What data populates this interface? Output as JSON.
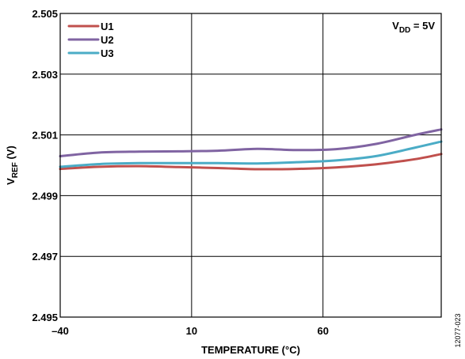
{
  "chart_data": {
    "type": "line",
    "xlabel": "TEMPERATURE (°C)",
    "ylabel": {
      "main": "V",
      "sub": "REF",
      "unit": " (V)"
    },
    "annotation": {
      "main": "V",
      "sub": "DD",
      "rest": " = 5V"
    },
    "figure_number": "12077-023",
    "xlim": [
      -40,
      105
    ],
    "ylim": [
      2.495,
      2.505
    ],
    "x_ticks": [
      {
        "value": -40,
        "label": "–40"
      },
      {
        "value": 10,
        "label": "10"
      },
      {
        "value": 60,
        "label": "60"
      }
    ],
    "y_ticks": [
      {
        "value": 2.495,
        "label": "2.495"
      },
      {
        "value": 2.497,
        "label": "2.497"
      },
      {
        "value": 2.499,
        "label": "2.499"
      },
      {
        "value": 2.501,
        "label": "2.501"
      },
      {
        "value": 2.503,
        "label": "2.503"
      },
      {
        "value": 2.505,
        "label": "2.505"
      }
    ],
    "grid": true,
    "legend_position": "top-left",
    "x": [
      -40,
      -25,
      -10,
      5,
      20,
      35,
      50,
      65,
      80,
      95,
      105
    ],
    "series": [
      {
        "name": "U1",
        "color": "#c0504d",
        "values": [
          2.49988,
          2.49995,
          2.49997,
          2.49994,
          2.49991,
          2.49987,
          2.49988,
          2.49993,
          2.50003,
          2.5002,
          2.50037
        ]
      },
      {
        "name": "U2",
        "color": "#8064a2",
        "values": [
          2.5003,
          2.50042,
          2.50045,
          2.50046,
          2.50048,
          2.50054,
          2.5005,
          2.50053,
          2.5007,
          2.501,
          2.50118
        ]
      },
      {
        "name": "U3",
        "color": "#4bacc6",
        "values": [
          2.49995,
          2.50004,
          2.50007,
          2.50007,
          2.50007,
          2.50006,
          2.5001,
          2.50016,
          2.5003,
          2.50058,
          2.50078
        ]
      }
    ]
  }
}
